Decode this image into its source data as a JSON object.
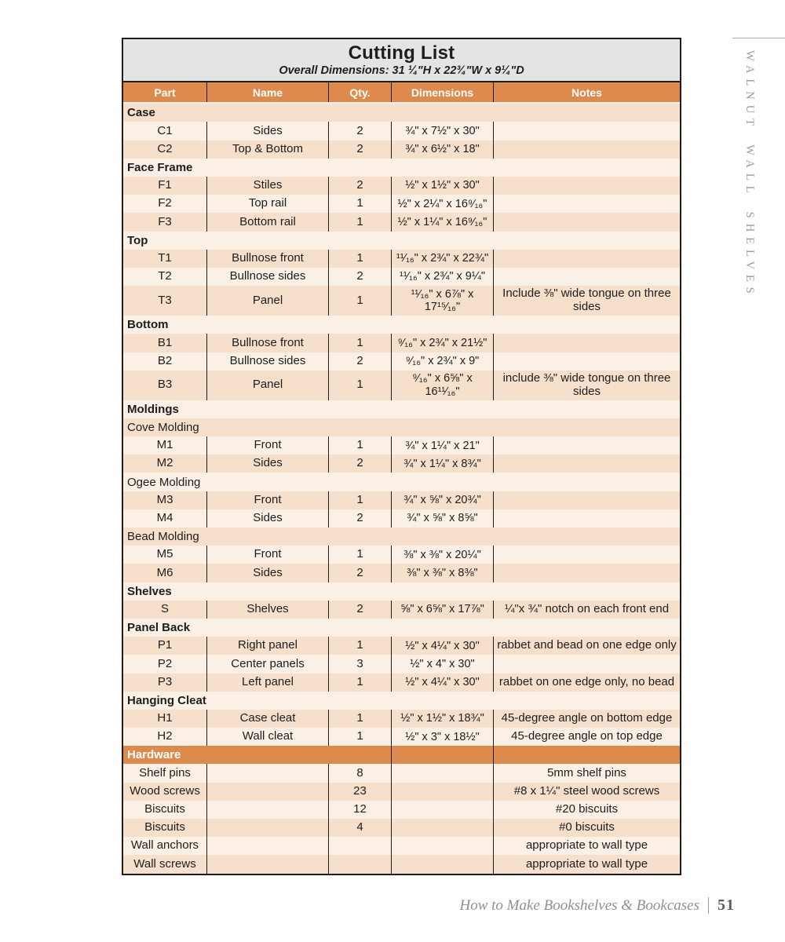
{
  "page": {
    "margin_label": "WALNUT WALL SHELVES",
    "footer": {
      "book_title": "How to Make Bookshelves & Bookcases",
      "page_number": "51"
    }
  },
  "table": {
    "title": "Cutting List",
    "subtitle": "Overall Dimensions: 31 ¼\"H x 22¾\"W x 9¼\"D",
    "columns": [
      "Part",
      "Name",
      "Qty.",
      "Dimensions",
      "Notes"
    ],
    "colors": {
      "header_bg": "#DE8A4C",
      "stripe_dark": "#F6DFCB",
      "stripe_light": "#FAF0E6",
      "title_bg": "#E3E4E6",
      "ink": "#1d1d1d"
    },
    "rows": [
      {
        "type": "section",
        "label": "Case"
      },
      {
        "type": "item",
        "part": "C1",
        "name": "Sides",
        "qty": "2",
        "dim": "¾\" x 7½\" x 30\"",
        "notes": ""
      },
      {
        "type": "item",
        "part": "C2",
        "name": "Top & Bottom",
        "qty": "2",
        "dim": "¾\" x 6½\" x 18\"",
        "notes": ""
      },
      {
        "type": "section",
        "label": "Face Frame"
      },
      {
        "type": "item",
        "part": "F1",
        "name": "Stiles",
        "qty": "2",
        "dim": "½\" x 1½\" x 30\"",
        "notes": ""
      },
      {
        "type": "item",
        "part": "F2",
        "name": "Top rail",
        "qty": "1",
        "dim": "½\" x 2¼\" x 16⁹⁄₁₆\"",
        "notes": ""
      },
      {
        "type": "item",
        "part": "F3",
        "name": "Bottom rail",
        "qty": "1",
        "dim": "½\" x 1¼\" x 16⁹⁄₁₆\"",
        "notes": ""
      },
      {
        "type": "section",
        "label": "Top"
      },
      {
        "type": "item",
        "part": "T1",
        "name": "Bullnose front",
        "qty": "1",
        "dim": "¹¹⁄₁₆\" x 2¾\" x 22¾\"",
        "notes": ""
      },
      {
        "type": "item",
        "part": "T2",
        "name": "Bullnose sides",
        "qty": "2",
        "dim": "¹¹⁄₁₆\" x 2¾\" x 9¼\"",
        "notes": ""
      },
      {
        "type": "item",
        "part": "T3",
        "name": "Panel",
        "qty": "1",
        "dim": "¹¹⁄₁₆\" x 6⅞\" x 17¹⁵⁄₁₆\"",
        "notes": "Include ⅜\" wide tongue on three sides",
        "tall": true
      },
      {
        "type": "section",
        "label": "Bottom"
      },
      {
        "type": "item",
        "part": "B1",
        "name": "Bullnose front",
        "qty": "1",
        "dim": "⁹⁄₁₆\" x 2¾\" x 21½\"",
        "notes": ""
      },
      {
        "type": "item",
        "part": "B2",
        "name": "Bullnose sides",
        "qty": "2",
        "dim": "⁹⁄₁₆\" x 2¾\" x 9\"",
        "notes": ""
      },
      {
        "type": "item",
        "part": "B3",
        "name": "Panel",
        "qty": "1",
        "dim": "⁹⁄₁₆\" x 6⅝\" x 16¹¹⁄₁₆\"",
        "notes": "include ⅜\" wide tongue on three sides",
        "tall": true
      },
      {
        "type": "section",
        "label": "Moldings"
      },
      {
        "type": "section",
        "label": "Cove Molding",
        "sub": true
      },
      {
        "type": "item",
        "part": "M1",
        "name": "Front",
        "qty": "1",
        "dim": "¾\" x 1¼\" x 21\"",
        "notes": ""
      },
      {
        "type": "item",
        "part": "M2",
        "name": "Sides",
        "qty": "2",
        "dim": "¾\" x 1¼\" x 8¾\"",
        "notes": ""
      },
      {
        "type": "section",
        "label": "Ogee Molding",
        "sub": true
      },
      {
        "type": "item",
        "part": "M3",
        "name": "Front",
        "qty": "1",
        "dim": "¾\" x ⅝\" x 20¾\"",
        "notes": ""
      },
      {
        "type": "item",
        "part": "M4",
        "name": "Sides",
        "qty": "2",
        "dim": "¾\" x ⅝\" x 8⅝\"",
        "notes": ""
      },
      {
        "type": "section",
        "label": "Bead Molding",
        "sub": true
      },
      {
        "type": "item",
        "part": "M5",
        "name": "Front",
        "qty": "1",
        "dim": "⅜\" x ⅜\" x 20¼\"",
        "notes": ""
      },
      {
        "type": "item",
        "part": "M6",
        "name": "Sides",
        "qty": "2",
        "dim": "⅜\" x ⅜\" x 8⅜\"",
        "notes": ""
      },
      {
        "type": "section",
        "label": "Shelves"
      },
      {
        "type": "item",
        "part": "S",
        "name": "Shelves",
        "qty": "2",
        "dim": "⅝\" x 6⅝\" x 17⅞\"",
        "notes": "¼\"x ¾\" notch on each front end"
      },
      {
        "type": "section",
        "label": "Panel Back"
      },
      {
        "type": "item",
        "part": "P1",
        "name": "Right panel",
        "qty": "1",
        "dim": "½\" x 4¼\" x 30\"",
        "notes": "rabbet and bead on one edge only"
      },
      {
        "type": "item",
        "part": "P2",
        "name": "Center panels",
        "qty": "3",
        "dim": "½\" x 4\" x 30\"",
        "notes": ""
      },
      {
        "type": "item",
        "part": "P3",
        "name": "Left panel",
        "qty": "1",
        "dim": "½\" x 4¼\" x 30\"",
        "notes": "rabbet on one edge only, no bead"
      },
      {
        "type": "section",
        "label": "Hanging Cleat"
      },
      {
        "type": "item",
        "part": "H1",
        "name": "Case cleat",
        "qty": "1",
        "dim": "½\" x 1½\" x 18¾\"",
        "notes": "45-degree angle on bottom edge"
      },
      {
        "type": "item",
        "part": "H2",
        "name": "Wall cleat",
        "qty": "1",
        "dim": "½\" x 3\" x 18½\"",
        "notes": "45-degree angle on top edge"
      },
      {
        "type": "hardware_header",
        "label": "Hardware"
      },
      {
        "type": "item",
        "part": "Shelf pins",
        "name": "",
        "qty": "8",
        "dim": "",
        "notes": "5mm shelf pins"
      },
      {
        "type": "item",
        "part": "Wood screws",
        "name": "",
        "qty": "23",
        "dim": "",
        "notes": "#8 x 1¼\" steel wood screws"
      },
      {
        "type": "item",
        "part": "Biscuits",
        "name": "",
        "qty": "12",
        "dim": "",
        "notes": "#20 biscuits"
      },
      {
        "type": "item",
        "part": "Biscuits",
        "name": "",
        "qty": "4",
        "dim": "",
        "notes": "#0 biscuits"
      },
      {
        "type": "item",
        "part": "Wall anchors",
        "name": "",
        "qty": "",
        "dim": "",
        "notes": "appropriate to wall type"
      },
      {
        "type": "item",
        "part": "Wall screws",
        "name": "",
        "qty": "",
        "dim": "",
        "notes": "appropriate to wall type"
      }
    ]
  }
}
